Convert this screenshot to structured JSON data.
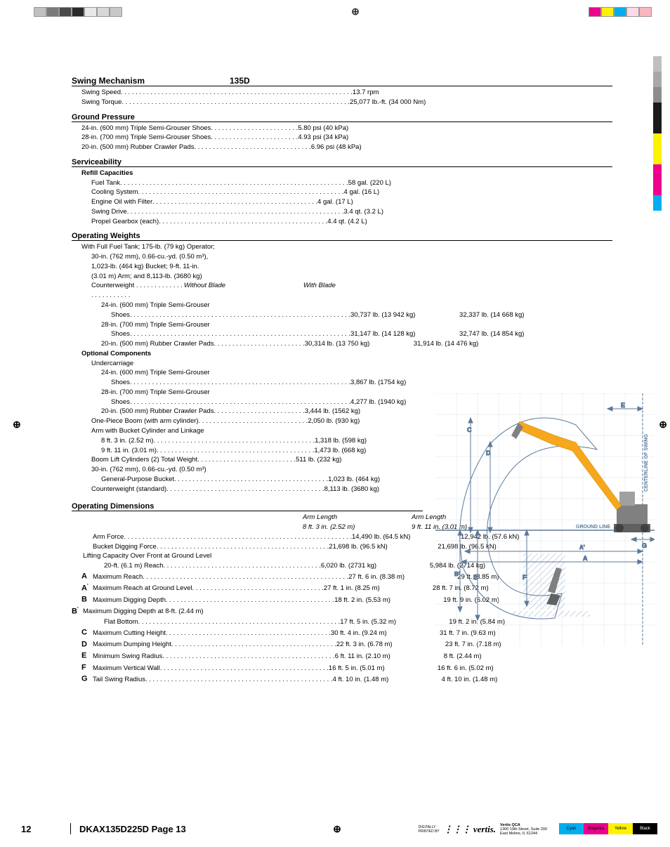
{
  "header": {
    "model": "135D",
    "sections": {
      "swing": {
        "title": "Swing Mechanism",
        "items": [
          {
            "label": "Swing Speed",
            "v1": "13.7 rpm"
          },
          {
            "label": "Swing Torque",
            "v1": "25,077 lb.-ft. (34 000 Nm)"
          }
        ]
      },
      "ground": {
        "title": "Ground Pressure",
        "items": [
          {
            "label": "24-in. (600 mm) Triple Semi-Grouser Shoes",
            "v1": "5.80 psi (40 kPa)"
          },
          {
            "label": "28-in. (700 mm) Triple Semi-Grouser Shoes",
            "v1": "4.93 psi (34 kPa)"
          },
          {
            "label": "20-in. (500 mm) Rubber Crawler Pads",
            "v1": "6.96 psi (48 kPa)"
          }
        ]
      },
      "service": {
        "title": "Serviceability",
        "subtitle": "Refill Capacities",
        "items": [
          {
            "label": "Fuel Tank",
            "v1": "58 gal. (220 L)"
          },
          {
            "label": "Cooling System",
            "v1": "4 gal. (16 L)"
          },
          {
            "label": "Engine Oil with Filter",
            "v1": "4 gal. (17 L)"
          },
          {
            "label": "Swing Drive",
            "v1": "3.4 qt. (3.2 L)"
          },
          {
            "label": "Propel Gearbox (each)",
            "v1": "4.4 qt. (4.2 L)"
          }
        ]
      },
      "weights": {
        "title": "Operating Weights",
        "preamble": [
          "With Full Fuel Tank; 175-lb. (79 kg) Operator;",
          "30-in. (762 mm), 0.66-cu.-yd. (0.50 m³),",
          "1,023-lb. (464 kg) Bucket; 9-ft. 11-in.",
          "(3.01 m) Arm; and 8,113-lb. (3680 kg)"
        ],
        "col_a": "Without Blade",
        "col_b": "With Blade",
        "counterweight_label": "Counterweight",
        "items": [
          {
            "label": "24-in. (600 mm) Triple Semi-Grouser",
            "sub": "Shoes",
            "v1": "30,737 lb. (13 942 kg)",
            "v2": "32,337 lb. (14 668 kg)"
          },
          {
            "label": "28-in. (700 mm) Triple Semi-Grouser",
            "sub": "Shoes",
            "v1": "31,147 lb. (14 128 kg)",
            "v2": "32,747 lb. (14 854 kg)"
          },
          {
            "label": "20-in. (500 mm) Rubber Crawler Pads",
            "v1": "30,314 lb. (13 750 kg)",
            "v2": "31,914 lb. (14 476 kg)"
          }
        ],
        "optional_title": "Optional Components",
        "optional_sub": "Undercarriage",
        "optional": [
          {
            "label": "24-in. (600 mm) Triple Semi-Grouser",
            "sub": "Shoes",
            "v1": "3,867 lb. (1754 kg)"
          },
          {
            "label": "28-in. (700 mm) Triple Semi-Grouser",
            "sub": "Shoes",
            "v1": "4,277 lb. (1940 kg)"
          },
          {
            "label": "20-in. (500 mm) Rubber Crawler Pads",
            "v1": "3,444 lb. (1562 kg)"
          }
        ],
        "other": [
          {
            "label": "One-Piece Boom (with arm cylinder)",
            "v1": "2,050 lb. (930 kg)"
          },
          {
            "label2": "Arm with Bucket Cylinder and Linkage"
          },
          {
            "label": "8 ft. 3 in. (2.52 m)",
            "v1": "1,318 lb. (598 kg)",
            "indent": true
          },
          {
            "label": "9 ft. 11 in. (3.01 m)",
            "v1": "1,473 lb. (668 kg)",
            "indent": true
          },
          {
            "label": "Boom Lift Cylinders (2) Total Weight",
            "v1": "511 lb. (232 kg)"
          },
          {
            "label2": "30-in. (762 mm), 0.66-cu.-yd. (0.50 m³)"
          },
          {
            "label": "General-Purpose Bucket",
            "v1": "1,023 lb. (464 kg)",
            "indent": true
          },
          {
            "label": "Counterweight (standard)",
            "v1": "8,113 lb. (3680 kg)"
          }
        ]
      },
      "dims": {
        "title": "Operating Dimensions",
        "col_a_top": "Arm Length",
        "col_a": "8 ft. 3 in. (2.52 m)",
        "col_b_top": "Arm Length",
        "col_b": "9 ft. 11 in. (3.01 m)",
        "items": [
          {
            "letter": "",
            "label": "Arm Force",
            "v1": "14,490 lb. (64.5 kN)",
            "v2": "12,942 lb. (57.6 kN)"
          },
          {
            "letter": "",
            "label": "Bucket Digging Force",
            "v1": "21,698 lb. (96.5 kN)",
            "v2": "21,698 lb. (96.5 kN)"
          },
          {
            "letter": "",
            "label2": "Lifting Capacity Over Front at Ground Level"
          },
          {
            "letter": "",
            "label": "20-ft. (6.1 m) Reach",
            "v1": "6,020 lb. (2731 kg)",
            "v2": "5,984 lb. (2714 kg)",
            "indent": true
          },
          {
            "letter": "A",
            "label": "Maximum Reach",
            "v1": "27 ft. 6 in. (8.38 m)",
            "v2": "29 ft. (8.85 m)"
          },
          {
            "letter": "A'",
            "label": "Maximum Reach at Ground Level",
            "v1": "27 ft. 1 in. (8.25 m)",
            "v2": "28 ft. 7 in. (8.72 m)"
          },
          {
            "letter": "B",
            "label": "Maximum Digging Depth",
            "v1": "18 ft. 2 in. (5.53 m)",
            "v2": "19 ft. 9 in. (6.02 m)"
          },
          {
            "letter": "B'",
            "label2": "Maximum Digging Depth at 8-ft. (2.44 m)"
          },
          {
            "letter": "",
            "label": "Flat Bottom",
            "v1": "17 ft. 5 in. (5.32 m)",
            "v2": "19 ft. 2 in. (5.84 m)",
            "indent": true
          },
          {
            "letter": "C",
            "label": "Maximum Cutting Height",
            "v1": "30 ft. 4 in. (9.24 m)",
            "v2": "31 ft. 7 in. (9.63 m)"
          },
          {
            "letter": "D",
            "label": "Maximum Dumping Height",
            "v1": "22 ft. 3 in. (6.78 m)",
            "v2": "23 ft. 7 in. (7.18 m)"
          },
          {
            "letter": "E",
            "label": "Minimum Swing Radius",
            "v1": "6 ft. 11 in. (2.10 m)",
            "v2": "8 ft. (2.44 m)"
          },
          {
            "letter": "F",
            "label": "Maximum Vertical Wall",
            "v1": "16 ft. 5 in. (5.01 m)",
            "v2": "16 ft. 6 in. (5.02 m)"
          },
          {
            "letter": "G",
            "label": "Tail Swing Radius",
            "v1": "4 ft. 10 in. (1.48 m)",
            "v2": "4 ft. 10 in. (1.48 m)"
          }
        ]
      }
    }
  },
  "diagram": {
    "ground_line": "GROUND LINE",
    "swing_label": "CENTERLINE OF SWING",
    "letters": [
      "C",
      "D",
      "E",
      "A",
      "A'",
      "B",
      "B'",
      "F",
      "G"
    ],
    "colors": {
      "lines": "#5b7a99",
      "machine": "#808080",
      "accent": "#f7a71b",
      "label": "#5b7a99"
    }
  },
  "footer": {
    "page": "12",
    "doc": "DKAX135D225D Page 13",
    "vertis_name": "vertis",
    "vertis_sub": "Vertis QCA",
    "vertis_addr1": "1300 19th Street, Suite 200",
    "vertis_addr2": "East Moline, IL 61244",
    "cmyk": [
      "Cyan",
      "Magenta",
      "Yellow",
      "Black"
    ],
    "cmyk_colors": [
      "#00aeef",
      "#ec008c",
      "#fff200",
      "#000000"
    ]
  },
  "colorbar": {
    "top_squares": [
      [
        "#c0c0c0",
        "#7a7a7a",
        "#4a4a4a",
        "#2a2a2a",
        "#e8e8e8",
        "#d8d8d8",
        "#c8c8c8"
      ],
      [
        "#ec008c",
        "#fff200",
        "#00aeef",
        "#ffd9e8",
        "#f9b5c0"
      ]
    ],
    "side": [
      "#bfbfbf",
      "#a8a8a8",
      "#8c8c8c",
      "#1a1a1a",
      "#1a1a1a",
      "#fff200",
      "#fff200",
      "#ec008c",
      "#ec008c",
      "#00aeef"
    ]
  }
}
